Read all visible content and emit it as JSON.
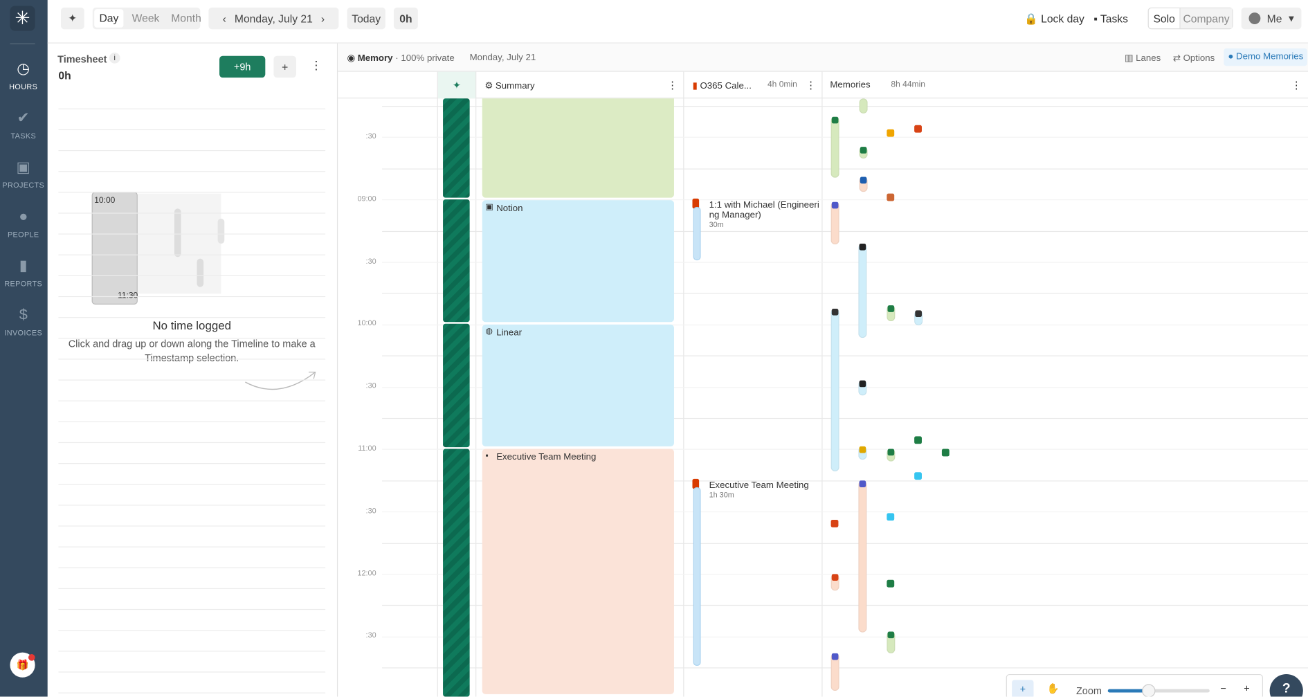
{
  "sidebar": {
    "nav": [
      "HOURS",
      "TASKS",
      "PROJECTS",
      "PEOPLE",
      "REPORTS",
      "INVOICES"
    ]
  },
  "toolbar": {
    "views": [
      "Day",
      "Week",
      "Month"
    ],
    "date": "Monday, July 21",
    "today": "Today",
    "total": "0h",
    "lock": "Lock day",
    "tasks": "Tasks",
    "modes": [
      "Solo",
      "Company"
    ],
    "user": "Me"
  },
  "timesheet": {
    "title": "Timesheet",
    "total": "0h",
    "ai_button": "+9h",
    "illustration_start": "10:00",
    "illustration_end": "11:30",
    "empty_title": "No time logged",
    "empty_text_1": "Click and drag up or down along the Timeline to make a",
    "empty_text_2": "Timestamp selection."
  },
  "memory": {
    "label": "Memory",
    "privacy": "· 100% private",
    "date": "Monday, July 21",
    "actions": [
      "Lanes",
      "Options",
      "Demo Memories"
    ]
  },
  "columns": {
    "summary": "Summary",
    "calendar": "O365 Cale...",
    "calendar_duration": "4h 0min",
    "memories": "Memories",
    "memories_duration": "8h 44min"
  },
  "time_labels": [
    ":30",
    "09:00",
    ":30",
    "10:00",
    ":30",
    "11:00",
    ":30",
    "12:00",
    ":30"
  ],
  "summary_blocks": [
    "Notion",
    "Linear",
    "Executive Team Meeting"
  ],
  "calendar_events": [
    {
      "title_1": "1:1 with Michael (Engineeri",
      "title_2": "ng Manager)",
      "duration": "30m"
    },
    {
      "title_1": "Executive Team Meeting",
      "duration": "1h 30m"
    }
  ],
  "zoom": {
    "label": "Zoom"
  }
}
